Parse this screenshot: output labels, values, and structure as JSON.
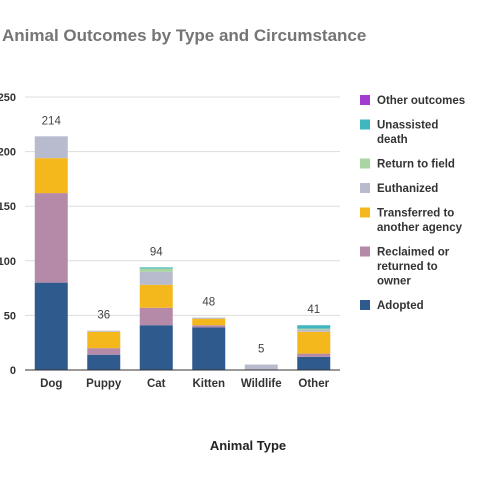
{
  "chart_data": {
    "type": "bar",
    "stacked": true,
    "title": "Animal Outcomes by Type and Circumstance",
    "xlabel": "Animal Type",
    "ylabel": "",
    "ylim": [
      0,
      250
    ],
    "yticks": [
      "0",
      "50",
      "100",
      "150",
      "200",
      "250"
    ],
    "grid": true,
    "legend_position": "right",
    "categories": [
      "Dog",
      "Puppy",
      "Cat",
      "Kitten",
      "Wildlife",
      "Other"
    ],
    "totals": [
      "214",
      "36",
      "94",
      "48",
      "5",
      "41"
    ],
    "series": [
      {
        "name": "Adopted",
        "color": "#2E5A8E",
        "values": [
          80,
          14,
          41,
          39,
          0,
          12
        ]
      },
      {
        "name": "Reclaimed or returned to owner",
        "color": "#B589A8",
        "values": [
          82,
          6,
          16,
          2,
          0,
          3
        ]
      },
      {
        "name": "Transferred to another agency",
        "color": "#F5B81C",
        "values": [
          32,
          15,
          21,
          6,
          0,
          20
        ]
      },
      {
        "name": "Euthanized",
        "color": "#B8BBCE",
        "values": [
          20,
          1,
          12,
          1,
          5,
          2
        ]
      },
      {
        "name": "Return to field",
        "color": "#A8D5A2",
        "values": [
          0,
          0,
          3,
          0,
          0,
          1
        ]
      },
      {
        "name": "Unassisted death",
        "color": "#3FB6C0",
        "values": [
          0,
          0,
          1,
          0,
          0,
          3
        ]
      },
      {
        "name": "Other outcomes",
        "color": "#A23BD0",
        "values": [
          0,
          0,
          0,
          0,
          0,
          0
        ]
      }
    ],
    "legend": [
      {
        "lines": [
          "Other outcomes"
        ],
        "color": "#A23BD0"
      },
      {
        "lines": [
          "Unassisted",
          "death"
        ],
        "color": "#3FB6C0"
      },
      {
        "lines": [
          "Return to field"
        ],
        "color": "#A8D5A2"
      },
      {
        "lines": [
          "Euthanized"
        ],
        "color": "#B8BBCE"
      },
      {
        "lines": [
          "Transferred to",
          "another agency"
        ],
        "color": "#F5B81C"
      },
      {
        "lines": [
          "Reclaimed or",
          "returned to",
          "owner"
        ],
        "color": "#B589A8"
      },
      {
        "lines": [
          "Adopted"
        ],
        "color": "#2E5A8E"
      }
    ]
  }
}
